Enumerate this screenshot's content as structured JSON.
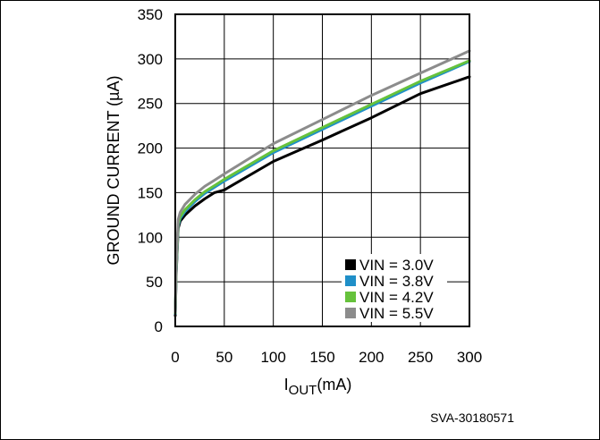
{
  "chart_data": {
    "type": "line",
    "xlabel": "I",
    "xlabel_sub": "OUT",
    "xlabel_unit": "(mA)",
    "ylabel": "GROUND CURRENT (µA)",
    "xlim": [
      0,
      300
    ],
    "ylim": [
      0,
      350
    ],
    "xticks": [
      0,
      50,
      100,
      150,
      200,
      250,
      300
    ],
    "yticks": [
      0,
      50,
      100,
      150,
      200,
      250,
      300,
      350
    ],
    "grid": true,
    "legend_position": "bottom-right",
    "series": [
      {
        "name": "VIN = 3.0V",
        "color": "#000000",
        "x": [
          0,
          1,
          3,
          5,
          10,
          20,
          30,
          40,
          50,
          100,
          150,
          200,
          250,
          300
        ],
        "y": [
          12,
          60,
          110,
          118,
          125,
          135,
          143,
          150,
          153,
          185,
          209,
          234,
          261,
          280
        ]
      },
      {
        "name": "VIN = 3.8V",
        "color": "#1f8fc8",
        "x": [
          0,
          1,
          3,
          5,
          10,
          20,
          30,
          40,
          50,
          100,
          150,
          200,
          250,
          300
        ],
        "y": [
          14,
          63,
          113,
          121,
          129,
          140,
          149,
          156,
          163,
          195,
          221,
          247,
          273,
          297
        ]
      },
      {
        "name": "VIN = 4.2V",
        "color": "#66c23c",
        "x": [
          0,
          1,
          3,
          5,
          10,
          20,
          30,
          40,
          50,
          100,
          150,
          200,
          250,
          300
        ],
        "y": [
          15,
          65,
          115,
          123,
          131,
          142,
          151,
          158,
          165,
          197,
          223,
          249,
          275,
          298
        ]
      },
      {
        "name": "VIN = 5.5V",
        "color": "#8c8c8c",
        "x": [
          0,
          1,
          3,
          5,
          10,
          20,
          30,
          40,
          50,
          100,
          150,
          200,
          250,
          300
        ],
        "y": [
          16,
          68,
          120,
          128,
          137,
          148,
          157,
          164,
          171,
          205,
          232,
          259,
          284,
          309
        ]
      }
    ]
  },
  "figure_id": "SVA-30180571"
}
